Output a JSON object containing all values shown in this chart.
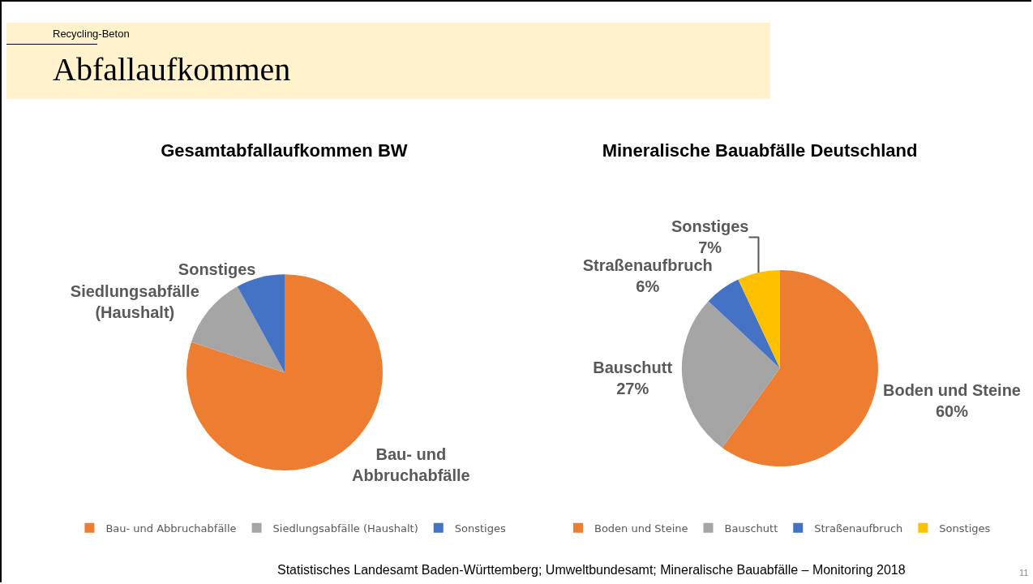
{
  "chart_data": [
    {
      "type": "other",
      "title": "Abfallaufkommen",
      "subtitle": "Recycling-Beton",
      "annotations": [
        "Statistisches Landesamt Baden-Württemberg; Umweltbundesamt; Mineralische Bauabfälle – Monitoring 2018",
        "11"
      ]
    },
    {
      "type": "pie",
      "title": "Gesamtabfallaufkommen BW",
      "categories": [
        "Bau- und Abbruchabfälle",
        "Siedlungsabfälle (Haushalt)",
        "Sonstiges"
      ],
      "values": [
        80,
        12,
        8
      ],
      "colors": [
        "#ed7d31",
        "#a5a5a5",
        "#4472c4"
      ],
      "value_labels": [
        "Bau- und\nAbbruchabfälle",
        "Siedlungsabfälle\n(Haushalt)",
        "Sonstiges"
      ],
      "legend": "bottom"
    },
    {
      "type": "pie",
      "title": "Mineralische Bauabfälle Deutschland",
      "categories": [
        "Boden und Steine",
        "Bauschutt",
        "Straßenaufbruch",
        "Sonstiges"
      ],
      "values": [
        60,
        27,
        6,
        7
      ],
      "colors": [
        "#ed7d31",
        "#a5a5a5",
        "#4472c4",
        "#ffc000"
      ],
      "value_labels": [
        "Boden und Steine\n60%",
        "Bauschutt\n27%",
        "Straßenaufbruch\n6%",
        "Sonstiges\n7%"
      ],
      "legend": "bottom"
    }
  ]
}
